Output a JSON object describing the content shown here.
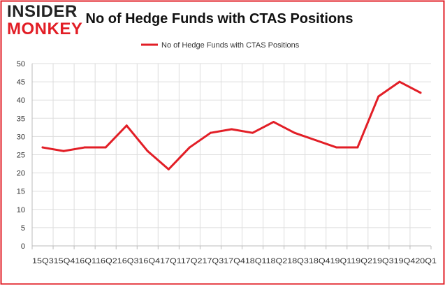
{
  "logo": {
    "line1": "INSIDER",
    "line2": "MONKEY"
  },
  "colors": {
    "line": "#e21e26",
    "frame": "#e21e26",
    "grid": "#dddddd",
    "axis": "#bbbbbb"
  },
  "chart_data": {
    "type": "line",
    "title": "No of Hedge Funds with CTAS Positions",
    "xlabel": "",
    "ylabel": "",
    "legend": "top",
    "grid": true,
    "ylim": [
      0,
      50
    ],
    "yticks": [
      0,
      5,
      10,
      15,
      20,
      25,
      30,
      35,
      40,
      45,
      50
    ],
    "x_tick_text": "15Q315Q416Q116Q216Q316Q417Q117Q217Q317Q418Q118Q218Q318Q419Q119Q219Q319Q420Q1",
    "categories": [
      "15Q3",
      "15Q4",
      "16Q1",
      "16Q2",
      "16Q3",
      "16Q4",
      "17Q1",
      "17Q2",
      "17Q3",
      "17Q4",
      "18Q1",
      "18Q2",
      "18Q3",
      "18Q4",
      "19Q1",
      "19Q2",
      "19Q3",
      "19Q4",
      "20Q1"
    ],
    "series": [
      {
        "name": "No of Hedge Funds with CTAS Positions",
        "values": [
          27,
          26,
          27,
          27,
          33,
          26,
          21,
          27,
          31,
          32,
          31,
          34,
          31,
          29,
          27,
          27,
          41,
          45,
          42
        ]
      }
    ]
  }
}
